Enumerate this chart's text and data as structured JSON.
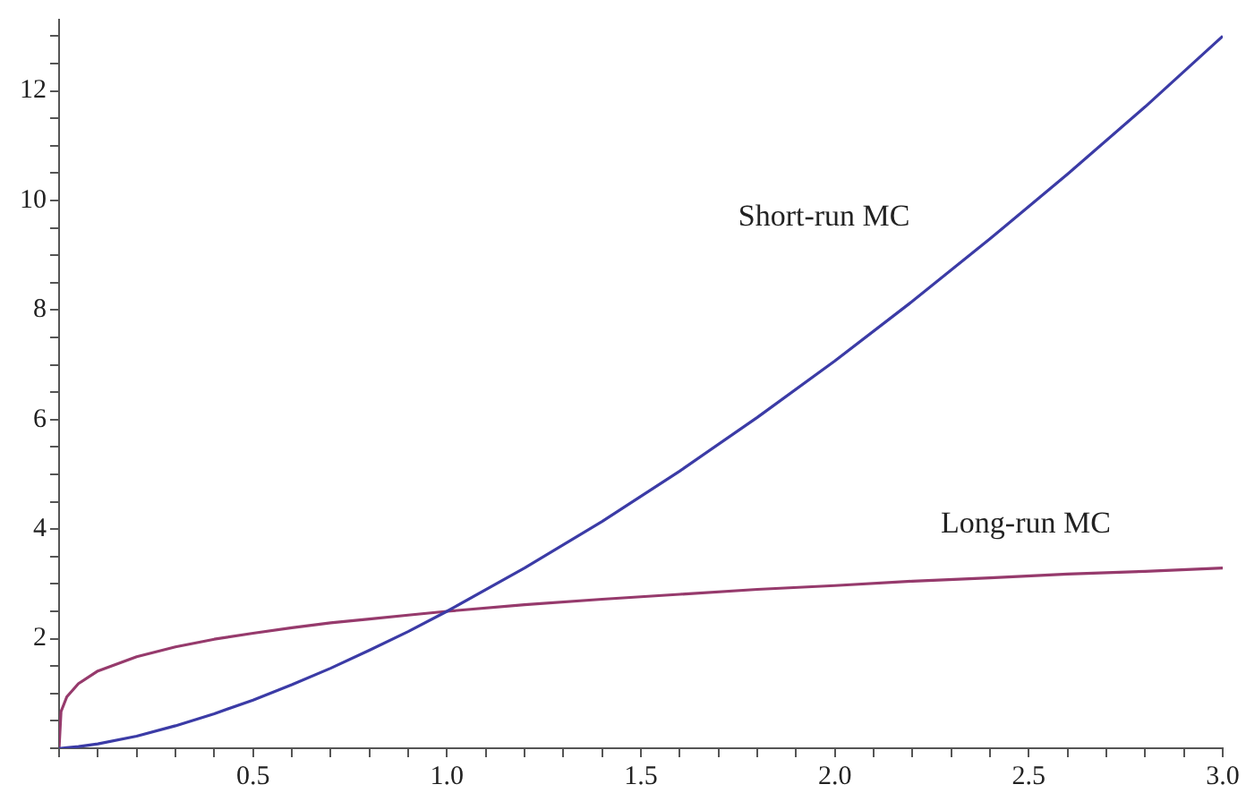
{
  "chart_data": {
    "type": "line",
    "x": [
      0,
      0.005,
      0.02,
      0.05,
      0.1,
      0.2,
      0.3,
      0.4,
      0.5,
      0.6,
      0.7,
      0.8,
      0.9,
      1.0,
      1.2,
      1.4,
      1.6,
      1.8,
      2.0,
      2.2,
      2.4,
      2.6,
      2.8,
      3.0
    ],
    "series": [
      {
        "name": "Short-run MC",
        "color": "#3b3ba6",
        "values": [
          0,
          0,
          0.01,
          0.03,
          0.08,
          0.22,
          0.41,
          0.63,
          0.88,
          1.16,
          1.46,
          1.79,
          2.13,
          2.5,
          3.29,
          4.14,
          5.06,
          6.04,
          7.07,
          8.16,
          9.3,
          10.48,
          11.71,
          13.0
        ]
      },
      {
        "name": "Long-run MC",
        "color": "#963a6c",
        "values": [
          0,
          0.67,
          0.94,
          1.18,
          1.41,
          1.67,
          1.85,
          1.99,
          2.1,
          2.2,
          2.29,
          2.36,
          2.43,
          2.5,
          2.62,
          2.72,
          2.81,
          2.9,
          2.97,
          3.05,
          3.11,
          3.18,
          3.23,
          3.29
        ]
      }
    ],
    "xlim": [
      0,
      3.0
    ],
    "ylim": [
      0,
      13.3
    ],
    "xticks": [
      {
        "value": 0,
        "label": null
      },
      {
        "value": 0.1,
        "label": null
      },
      {
        "value": 0.2,
        "label": null
      },
      {
        "value": 0.3,
        "label": null
      },
      {
        "value": 0.4,
        "label": null
      },
      {
        "value": 0.5,
        "label": "0.5"
      },
      {
        "value": 0.6,
        "label": null
      },
      {
        "value": 0.7,
        "label": null
      },
      {
        "value": 0.8,
        "label": null
      },
      {
        "value": 0.9,
        "label": null
      },
      {
        "value": 1,
        "label": "1.0"
      },
      {
        "value": 1.1,
        "label": null
      },
      {
        "value": 1.2,
        "label": null
      },
      {
        "value": 1.3,
        "label": null
      },
      {
        "value": 1.4,
        "label": null
      },
      {
        "value": 1.5,
        "label": "1.5"
      },
      {
        "value": 1.6,
        "label": null
      },
      {
        "value": 1.7,
        "label": null
      },
      {
        "value": 1.8,
        "label": null
      },
      {
        "value": 1.9,
        "label": null
      },
      {
        "value": 2,
        "label": "2.0"
      },
      {
        "value": 2.1,
        "label": null
      },
      {
        "value": 2.2,
        "label": null
      },
      {
        "value": 2.3,
        "label": null
      },
      {
        "value": 2.4,
        "label": null
      },
      {
        "value": 2.5,
        "label": "2.5"
      },
      {
        "value": 2.6,
        "label": null
      },
      {
        "value": 2.7,
        "label": null
      },
      {
        "value": 2.8,
        "label": null
      },
      {
        "value": 2.9,
        "label": null
      },
      {
        "value": 3,
        "label": "3.0"
      }
    ],
    "yticks": [
      {
        "value": 0,
        "label": null
      },
      {
        "value": 0.5,
        "label": null
      },
      {
        "value": 1,
        "label": null
      },
      {
        "value": 1.5,
        "label": null
      },
      2,
      {
        "value": 2.5,
        "label": null
      },
      {
        "value": 3,
        "label": null
      },
      {
        "value": 3.5,
        "label": null
      },
      4,
      {
        "value": 4.5,
        "label": null
      },
      {
        "value": 5,
        "label": null
      },
      {
        "value": 5.5,
        "label": null
      },
      6,
      {
        "value": 6.5,
        "label": null
      },
      {
        "value": 7,
        "label": null
      },
      {
        "value": 7.5,
        "label": null
      },
      8,
      {
        "value": 8.5,
        "label": null
      },
      {
        "value": 9,
        "label": null
      },
      {
        "value": 9.5,
        "label": null
      },
      10,
      {
        "value": 10.5,
        "label": null
      },
      {
        "value": 11,
        "label": null
      },
      {
        "value": 11.5,
        "label": null
      },
      12,
      {
        "value": 12.5,
        "label": null
      },
      {
        "value": 13,
        "label": null
      }
    ],
    "grid": false,
    "legend": false,
    "marker": "none",
    "line_style": "solid"
  }
}
